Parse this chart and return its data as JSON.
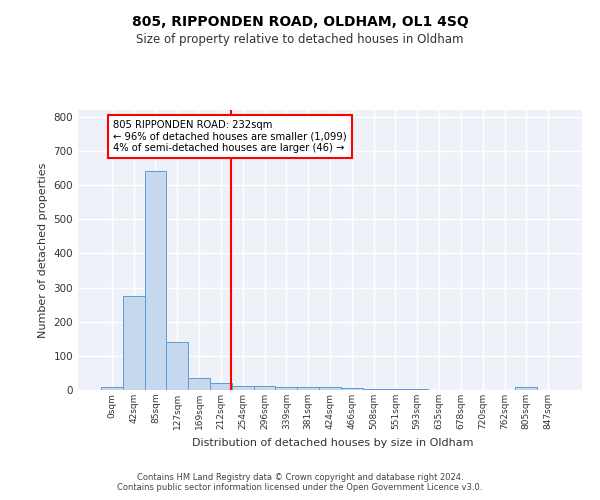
{
  "title": "805, RIPPONDEN ROAD, OLDHAM, OL1 4SQ",
  "subtitle": "Size of property relative to detached houses in Oldham",
  "xlabel": "Distribution of detached houses by size in Oldham",
  "ylabel": "Number of detached properties",
  "bar_color": "#c5d8ed",
  "bar_edge_color": "#5b9bd5",
  "background_color": "#eef2f8",
  "grid_color": "#ffffff",
  "categories": [
    "0sqm",
    "42sqm",
    "85sqm",
    "127sqm",
    "169sqm",
    "212sqm",
    "254sqm",
    "296sqm",
    "339sqm",
    "381sqm",
    "424sqm",
    "466sqm",
    "508sqm",
    "551sqm",
    "593sqm",
    "635sqm",
    "678sqm",
    "720sqm",
    "762sqm",
    "805sqm",
    "847sqm"
  ],
  "values": [
    8,
    275,
    640,
    140,
    35,
    20,
    13,
    12,
    10,
    10,
    10,
    5,
    4,
    3,
    2,
    0,
    0,
    0,
    0,
    8,
    0
  ],
  "reference_value": 232,
  "annotation_text": "805 RIPPONDEN ROAD: 232sqm\n← 96% of detached houses are smaller (1,099)\n4% of semi-detached houses are larger (46) →",
  "ylim": [
    0,
    820
  ],
  "yticks": [
    0,
    100,
    200,
    300,
    400,
    500,
    600,
    700,
    800
  ],
  "footer_line1": "Contains HM Land Registry data © Crown copyright and database right 2024.",
  "footer_line2": "Contains public sector information licensed under the Open Government Licence v3.0."
}
